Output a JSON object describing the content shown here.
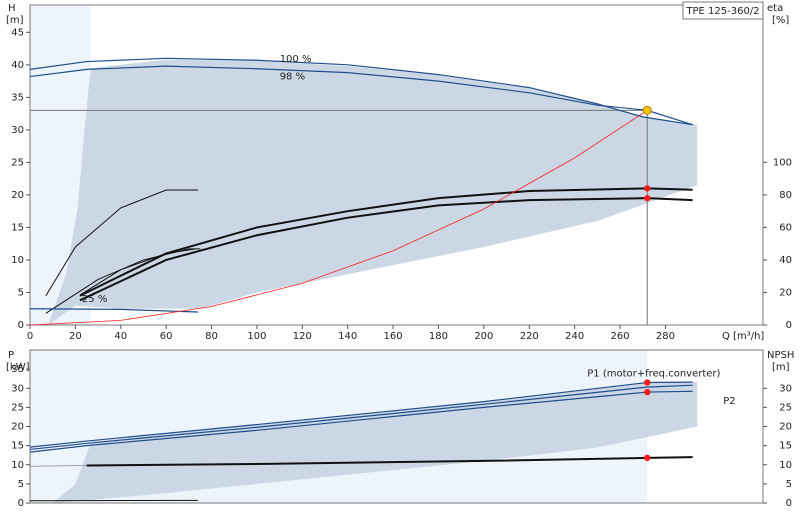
{
  "chart_data": [
    {
      "type": "line",
      "title": "TPE 125-360/2",
      "ylabel": "H",
      "yunit": "[m]",
      "y2label": "eta",
      "y2unit": "[%]",
      "xlabel": "Q [m³/h]",
      "xlim": [
        0,
        323
      ],
      "xticks": [
        0,
        20,
        40,
        60,
        80,
        100,
        120,
        140,
        160,
        180,
        200,
        220,
        240,
        260,
        280
      ],
      "ylim": [
        0,
        49.2
      ],
      "yticks": [
        0,
        5,
        10,
        15,
        20,
        25,
        30,
        35,
        40,
        45
      ],
      "y2lim": [
        0,
        196.8
      ],
      "y2ticks": [
        0,
        20,
        40,
        60,
        80,
        100
      ],
      "envelope": {
        "color": "#cbd7e5",
        "x": [
          8,
          16,
          21,
          24,
          26,
          27,
          60,
          100,
          140,
          180,
          220,
          250,
          270,
          294,
          294,
          250,
          200,
          150,
          100,
          75,
          40,
          20
        ],
        "values": [
          0,
          8,
          18,
          30,
          37,
          39.5,
          40.8,
          40.6,
          39.8,
          38.4,
          36.4,
          34,
          32,
          30.8,
          21.5,
          16,
          12,
          8.5,
          5,
          2.5,
          2.5,
          3
        ]
      },
      "series": [
        {
          "name": "100 %",
          "color": "#1f4e8c",
          "x": [
            0,
            25,
            60,
            100,
            140,
            180,
            220,
            250,
            270,
            292
          ],
          "values": [
            39.3,
            40.5,
            41,
            40.7,
            40,
            38.5,
            36.5,
            34,
            32,
            30.8
          ]
        },
        {
          "name": "98 %",
          "color": "#1f4e8c",
          "x": [
            0,
            25,
            60,
            100,
            140,
            180,
            220,
            250,
            272,
            292
          ],
          "values": [
            38.2,
            39.3,
            39.8,
            39.4,
            38.8,
            37.5,
            35.7,
            33.8,
            33,
            30.8
          ]
        },
        {
          "color": "#111111",
          "axis": "y2",
          "x": [
            7,
            20,
            40,
            60,
            74
          ],
          "values": [
            18,
            48,
            72,
            83,
            83
          ]
        },
        {
          "name": "25 %",
          "color": "#111111",
          "x": [
            22,
            40,
            60,
            73
          ],
          "values": [
            4.6,
            8.5,
            11,
            11.7
          ]
        },
        {
          "color": "#111111",
          "x": [
            7,
            30,
            50,
            70,
            75
          ],
          "values": [
            1.8,
            7,
            10,
            11.7,
            11.7
          ]
        },
        {
          "color": "#111111",
          "axis": "y2",
          "x": [
            22,
            60,
            100,
            140,
            180,
            220,
            272,
            292
          ],
          "values": [
            18,
            44,
            60,
            70,
            78,
            82.4,
            84,
            83.2
          ]
        },
        {
          "color": "#111111",
          "axis": "y2",
          "x": [
            22,
            60,
            100,
            140,
            180,
            220,
            272,
            292
          ],
          "values": [
            15.2,
            40,
            55.2,
            66,
            73.6,
            76.8,
            78,
            76.8
          ]
        },
        {
          "color": "#1f4e8c",
          "x": [
            0,
            40,
            74
          ],
          "values": [
            2.5,
            2.4,
            2
          ]
        },
        {
          "color": "#ff2020",
          "x": [
            0,
            40,
            80,
            120,
            160,
            200,
            240,
            272
          ],
          "values": [
            0,
            0.71,
            2.85,
            6.42,
            11.42,
            17.84,
            25.7,
            33
          ]
        }
      ],
      "points": [
        {
          "x": 272,
          "value": 84,
          "axis": "y2",
          "color": "#ff1a1a"
        },
        {
          "x": 272,
          "value": 78,
          "axis": "y2",
          "color": "#ff1a1a"
        }
      ],
      "duty_point": {
        "x": 272,
        "value": 33,
        "color": "#f5c400"
      }
    },
    {
      "type": "line",
      "ylabel": "P",
      "yunit": "[kW]",
      "y2label": "NPSH",
      "y2unit": "[m]",
      "xlim": [
        0,
        323
      ],
      "ylim": [
        0,
        40
      ],
      "yticks": [
        0,
        5,
        10,
        15,
        20,
        25,
        30,
        35
      ],
      "y2lim": [
        0,
        40
      ],
      "y2ticks": [
        0,
        5,
        10,
        15,
        20,
        25,
        30
      ],
      "envelope": {
        "color": "#cbd7e5",
        "x": [
          10,
          20,
          27,
          100,
          200,
          272,
          294,
          294,
          250,
          200,
          150,
          100,
          50,
          20
        ],
        "values": [
          0,
          5,
          16,
          20.5,
          26.5,
          31.5,
          31.6,
          20,
          14.5,
          11,
          8,
          5,
          2,
          0.5
        ]
      },
      "series": [
        {
          "name": "P1 (motor+freq.converter)",
          "color": "#1f4e8c",
          "x": [
            0,
            25,
            100,
            200,
            272,
            292
          ],
          "values": [
            14.6,
            16.2,
            20.5,
            26.5,
            31.5,
            31.6
          ]
        },
        {
          "color": "#1f4e8c",
          "x": [
            0,
            25,
            100,
            200,
            272,
            292
          ],
          "values": [
            14,
            15.6,
            19.8,
            25.8,
            30.3,
            30.8
          ]
        },
        {
          "name": "P2",
          "color": "#1f4e8c",
          "x": [
            0,
            25,
            100,
            200,
            272,
            292
          ],
          "values": [
            13.3,
            15,
            19,
            25,
            29,
            29.2
          ]
        },
        {
          "color": "#111111",
          "axis": "y2",
          "x": [
            25,
            100,
            200,
            272,
            292
          ],
          "values": [
            9.8,
            10.2,
            11,
            11.8,
            12
          ]
        },
        {
          "color": "#888888",
          "axis": "y2",
          "x": [
            0,
            25
          ],
          "values": [
            9.6,
            9.8
          ]
        },
        {
          "color": "#111111",
          "x": [
            0,
            74
          ],
          "values": [
            0.6,
            0.7
          ]
        }
      ],
      "points": [
        {
          "x": 272,
          "value": 31.5,
          "color": "#ff1a1a"
        },
        {
          "x": 272,
          "value": 29,
          "color": "#ff1a1a"
        },
        {
          "x": 272,
          "value": 11.8,
          "axis": "y2",
          "color": "#ff1a1a"
        }
      ]
    }
  ]
}
